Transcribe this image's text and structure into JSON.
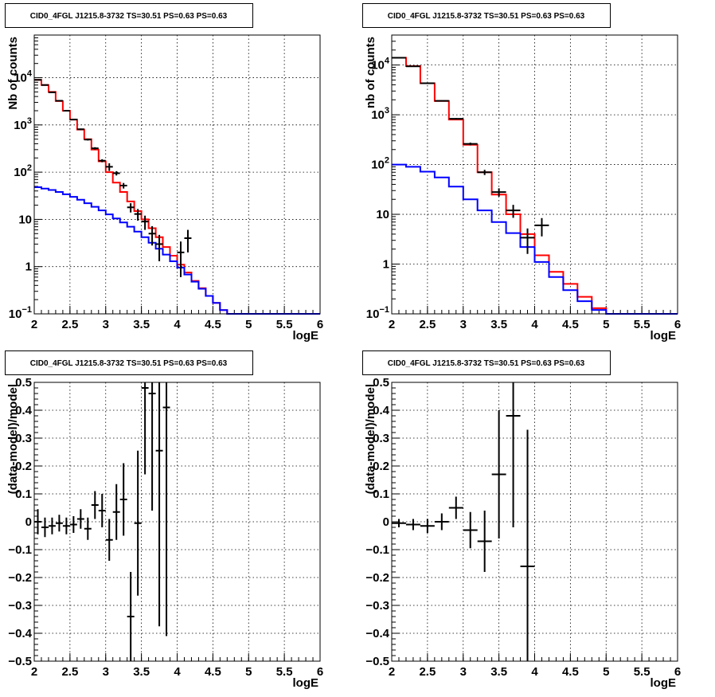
{
  "chart_data": [
    {
      "type": "line",
      "title": "CID0_4FGL J1215.8-3732 TS=30.51 PS=0.63 PS=0.63",
      "xlabel": "logE",
      "ylabel": "Nb of counts",
      "xlim": [
        2,
        6
      ],
      "ylim": [
        0.1,
        80000
      ],
      "log_y": true,
      "grid": true,
      "x_ticks": [
        "2",
        "2.5",
        "3",
        "3.5",
        "4",
        "4.5",
        "5",
        "5.5",
        "6"
      ],
      "y_ticks": [
        {
          "v": 0.1,
          "base": "10",
          "exp": "−1"
        },
        {
          "v": 1,
          "label": "1"
        },
        {
          "v": 10,
          "label": "10"
        },
        {
          "v": 100,
          "base": "10",
          "exp": "2"
        },
        {
          "v": 1000,
          "base": "10",
          "exp": "3"
        },
        {
          "v": 10000,
          "base": "10",
          "exp": "4"
        }
      ],
      "bin_edges": [
        2,
        2.1,
        2.2,
        2.3,
        2.4,
        2.5,
        2.6,
        2.7,
        2.8,
        2.9,
        3,
        3.1,
        3.2,
        3.3,
        3.4,
        3.5,
        3.6,
        3.7,
        3.8,
        3.9,
        4,
        4.1,
        4.2,
        4.3,
        4.4,
        4.5,
        4.6,
        4.7,
        4.8,
        4.9,
        5,
        5.1,
        5.2,
        5.3,
        5.4,
        5.5,
        5.6,
        5.7,
        5.8,
        5.9,
        6
      ],
      "series": [
        {
          "color": "#ff0000",
          "style": "step",
          "values": [
            9000,
            7000,
            5000,
            3200,
            2000,
            1300,
            800,
            500,
            300,
            170,
            100,
            60,
            38,
            24,
            15,
            10,
            6.5,
            4.2,
            2.6,
            1.7,
            1.1,
            0.75,
            0.5,
            0.35,
            0.24,
            0.17,
            0.12,
            0.1,
            0.1,
            0.1,
            0.1,
            0.1,
            0.1,
            0.1,
            0.1,
            0.1,
            0.1,
            0.1,
            0.1,
            0.1
          ]
        },
        {
          "color": "#0000ff",
          "style": "step",
          "values": [
            48,
            45,
            42,
            38,
            34,
            30,
            26,
            22,
            18.5,
            15.5,
            12.8,
            10.5,
            8.6,
            7,
            5.5,
            4.2,
            3.2,
            2.4,
            1.8,
            1.3,
            0.95,
            0.68,
            0.48,
            0.34,
            0.24,
            0.17,
            0.12,
            0.1,
            0.1,
            0.1,
            0.1,
            0.1,
            0.1,
            0.1,
            0.1,
            0.1,
            0.1,
            0.1,
            0.1,
            0.1
          ]
        },
        {
          "color": "#000000",
          "style": "errorbar",
          "points": [
            {
              "x": 2.05,
              "y": 9000,
              "yerr": 95
            },
            {
              "x": 2.15,
              "y": 7000,
              "yerr": 84
            },
            {
              "x": 2.25,
              "y": 4900,
              "yerr": 70
            },
            {
              "x": 2.35,
              "y": 3250,
              "yerr": 57
            },
            {
              "x": 2.45,
              "y": 2000,
              "yerr": 45
            },
            {
              "x": 2.55,
              "y": 1300,
              "yerr": 36
            },
            {
              "x": 2.65,
              "y": 810,
              "yerr": 28
            },
            {
              "x": 2.75,
              "y": 490,
              "yerr": 22
            },
            {
              "x": 2.85,
              "y": 320,
              "yerr": 18
            },
            {
              "x": 2.95,
              "y": 175,
              "yerr": 13
            },
            {
              "x": 3.05,
              "y": 130,
              "yerr": 24
            },
            {
              "x": 3.15,
              "y": 95,
              "yerr": 10
            },
            {
              "x": 3.25,
              "y": 52,
              "yerr": 7
            },
            {
              "x": 3.35,
              "y": 18,
              "yerr": 4
            },
            {
              "x": 3.45,
              "y": 13,
              "yerr": 3.6
            },
            {
              "x": 3.55,
              "y": 9,
              "yerr": 3
            },
            {
              "x": 3.65,
              "y": 5,
              "yerr": 2.2
            },
            {
              "x": 3.75,
              "y": 3,
              "yerr": 1.7
            },
            {
              "x": 4.05,
              "y": 2,
              "yerr": 1.4
            },
            {
              "x": 4.15,
              "y": 4,
              "yerr": 2
            }
          ]
        }
      ]
    },
    {
      "type": "line",
      "title": "CID0_4FGL J1215.8-3732 TS=30.51 PS=0.63 PS=0.63",
      "xlabel": "logE",
      "ylabel": "nb of counts",
      "xlim": [
        2,
        6
      ],
      "ylim": [
        0.1,
        40000
      ],
      "log_y": true,
      "grid": true,
      "x_ticks": [
        "2",
        "2.5",
        "3",
        "3.5",
        "4",
        "4.5",
        "5",
        "5.5",
        "6"
      ],
      "y_ticks": [
        {
          "v": 0.1,
          "base": "10",
          "exp": "−1"
        },
        {
          "v": 1,
          "label": "1"
        },
        {
          "v": 10,
          "label": "10"
        },
        {
          "v": 100,
          "base": "10",
          "exp": "2"
        },
        {
          "v": 1000,
          "base": "10",
          "exp": "3"
        },
        {
          "v": 10000,
          "base": "10",
          "exp": "4"
        }
      ],
      "bin_edges": [
        2,
        2.2,
        2.4,
        2.6,
        2.8,
        3,
        3.2,
        3.4,
        3.6,
        3.8,
        4,
        4.2,
        4.4,
        4.6,
        4.8,
        5,
        5.2,
        5.4,
        5.6,
        5.8,
        6
      ],
      "series": [
        {
          "color": "#ff0000",
          "style": "step",
          "values": [
            14000,
            9500,
            4300,
            1900,
            800,
            250,
            70,
            25,
            10,
            4,
            1.5,
            0.7,
            0.4,
            0.22,
            0.13,
            0.1,
            0.1,
            0.1,
            0.1,
            0.1
          ]
        },
        {
          "color": "#0000ff",
          "style": "step",
          "values": [
            100,
            90,
            72,
            55,
            36,
            20,
            12,
            7,
            4.2,
            2.2,
            1.1,
            0.55,
            0.3,
            0.18,
            0.12,
            0.1,
            0.1,
            0.1,
            0.1,
            0.1
          ]
        },
        {
          "color": "#000000",
          "style": "errorbar",
          "points": [
            {
              "x": 2.1,
              "y": 14000,
              "yerr": 120
            },
            {
              "x": 2.3,
              "y": 9400,
              "yerr": 97
            },
            {
              "x": 2.5,
              "y": 4300,
              "yerr": 66
            },
            {
              "x": 2.7,
              "y": 1900,
              "yerr": 44
            },
            {
              "x": 2.9,
              "y": 830,
              "yerr": 29
            },
            {
              "x": 3.1,
              "y": 260,
              "yerr": 16
            },
            {
              "x": 3.3,
              "y": 70,
              "yerr": 8.4
            },
            {
              "x": 3.5,
              "y": 28,
              "yerr": 5.3
            },
            {
              "x": 3.7,
              "y": 12,
              "yerr": 3.5
            },
            {
              "x": 3.9,
              "y": 3.4,
              "yerr": 1.8
            },
            {
              "x": 4.1,
              "y": 6,
              "yerr": 2.4
            }
          ]
        }
      ]
    },
    {
      "type": "scatter",
      "title": "CID0_4FGL J1215.8-3732 TS=30.51 PS=0.63 PS=0.63",
      "xlabel": "logE",
      "ylabel": "(data-model)/model",
      "xlim": [
        2,
        6
      ],
      "ylim": [
        -0.5,
        0.5
      ],
      "grid": true,
      "x_ticks": [
        "2",
        "2.5",
        "3",
        "3.5",
        "4",
        "4.5",
        "5",
        "5.5",
        "6"
      ],
      "y_ticks": [
        "−0.5",
        "−0.4",
        "−0.3",
        "−0.2",
        "−0.1",
        "0",
        "0.1",
        "0.2",
        "0.3",
        "0.4",
        "0.5"
      ],
      "y_tick_values": [
        -0.5,
        -0.4,
        -0.3,
        -0.2,
        -0.1,
        0,
        0.1,
        0.2,
        0.3,
        0.4,
        0.5
      ],
      "series": [
        {
          "color": "#000000",
          "style": "errorbar",
          "xerr": 0.05,
          "points": [
            {
              "x": 2.05,
              "y": 0.0,
              "yerr": 0.045
            },
            {
              "x": 2.15,
              "y": -0.02,
              "yerr": 0.035
            },
            {
              "x": 2.25,
              "y": -0.015,
              "yerr": 0.03
            },
            {
              "x": 2.35,
              "y": -0.005,
              "yerr": 0.03
            },
            {
              "x": 2.45,
              "y": -0.015,
              "yerr": 0.03
            },
            {
              "x": 2.55,
              "y": -0.01,
              "yerr": 0.03
            },
            {
              "x": 2.65,
              "y": 0.01,
              "yerr": 0.035
            },
            {
              "x": 2.75,
              "y": -0.025,
              "yerr": 0.04
            },
            {
              "x": 2.85,
              "y": 0.06,
              "yerr": 0.05
            },
            {
              "x": 2.95,
              "y": 0.04,
              "yerr": 0.06
            },
            {
              "x": 3.05,
              "y": -0.065,
              "yerr": 0.075
            },
            {
              "x": 3.15,
              "y": 0.035,
              "yerr": 0.1
            },
            {
              "x": 3.25,
              "y": 0.08,
              "yerr": 0.13
            },
            {
              "x": 3.35,
              "y": -0.34,
              "yerr": 0.16
            },
            {
              "x": 3.45,
              "y": -0.005,
              "yerr": 0.26
            },
            {
              "x": 3.55,
              "y": 0.48,
              "yerr": 0.31
            },
            {
              "x": 3.65,
              "y": 0.46,
              "yerr": 0.42
            },
            {
              "x": 3.75,
              "y": 0.255,
              "yerr": 0.63
            },
            {
              "x": 3.85,
              "y": 0.41,
              "yerr": 0.82
            }
          ]
        }
      ]
    },
    {
      "type": "scatter",
      "title": "CID0_4FGL J1215.8-3732 TS=30.51 PS=0.63 PS=0.63",
      "xlabel": "logE",
      "ylabel": "(data-model)/model",
      "xlim": [
        2,
        6
      ],
      "ylim": [
        -0.5,
        0.5
      ],
      "grid": true,
      "x_ticks": [
        "2",
        "2.5",
        "3",
        "3.5",
        "4",
        "4.5",
        "5",
        "5.5",
        "6"
      ],
      "y_ticks": [
        "−0.5",
        "−0.4",
        "−0.3",
        "−0.2",
        "−0.1",
        "0",
        "0.1",
        "0.2",
        "0.3",
        "0.4",
        "0.5"
      ],
      "y_tick_values": [
        -0.5,
        -0.4,
        -0.3,
        -0.2,
        -0.1,
        0,
        0.1,
        0.2,
        0.3,
        0.4,
        0.5
      ],
      "series": [
        {
          "color": "#000000",
          "style": "errorbar",
          "xerr": 0.1,
          "points": [
            {
              "x": 2.1,
              "y": -0.005,
              "yerr": 0.015
            },
            {
              "x": 2.3,
              "y": -0.01,
              "yerr": 0.02
            },
            {
              "x": 2.5,
              "y": -0.015,
              "yerr": 0.025
            },
            {
              "x": 2.7,
              "y": 0.0,
              "yerr": 0.03
            },
            {
              "x": 2.9,
              "y": 0.05,
              "yerr": 0.04
            },
            {
              "x": 3.1,
              "y": -0.03,
              "yerr": 0.065
            },
            {
              "x": 3.3,
              "y": -0.07,
              "yerr": 0.11
            },
            {
              "x": 3.5,
              "y": 0.17,
              "yerr": 0.23
            },
            {
              "x": 3.7,
              "y": 0.38,
              "yerr": 0.4
            },
            {
              "x": 3.9,
              "y": -0.16,
              "yerr": 0.49
            }
          ]
        }
      ]
    }
  ]
}
